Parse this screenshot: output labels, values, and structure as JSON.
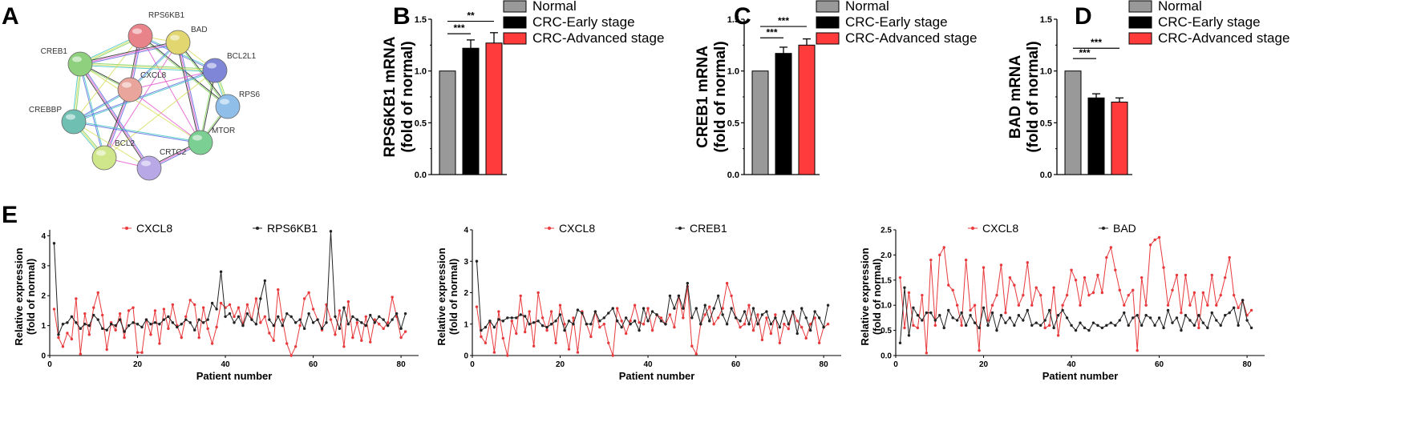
{
  "panels": {
    "a": "A",
    "b": "B",
    "c": "C",
    "d": "D",
    "e": "E"
  },
  "network": {
    "nodes": [
      {
        "label": "RPS6KB1",
        "color": "#e8838a"
      },
      {
        "label": "BAD",
        "color": "#e1d66f"
      },
      {
        "label": "CREB1",
        "color": "#8fd07f"
      },
      {
        "label": "BCL2L1",
        "color": "#7f86d8"
      },
      {
        "label": "CXCL8",
        "color": "#e9a59c"
      },
      {
        "label": "RPS6",
        "color": "#8fbfe8"
      },
      {
        "label": "CREBBP",
        "color": "#6fc0b3"
      },
      {
        "label": "MTOR",
        "color": "#7ccf93"
      },
      {
        "label": "BCL2",
        "color": "#cfe68a"
      },
      {
        "label": "CRTC2",
        "color": "#b9a8e6"
      }
    ]
  },
  "colors": {
    "normal": "#999999",
    "early": "#000000",
    "advanced": "#ff3b3b",
    "cxcl8_line": "#e8393c",
    "gene_line": "#222222"
  },
  "chart_data": [
    {
      "type": "bar",
      "panel": "B",
      "ylabel_line1": "RPS6KB1 mRNA",
      "ylabel_line2": "(fold of normal)",
      "categories": [
        "Normal",
        "CRC-Early stage",
        "CRC-Advanced stage"
      ],
      "values": [
        1.0,
        1.22,
        1.27
      ],
      "errors": [
        0,
        0.08,
        0.1
      ],
      "yticks": [
        "0.0",
        "0.5",
        "1.0",
        "1.5"
      ],
      "ylim": [
        0,
        1.5
      ],
      "significance": [
        {
          "from": 0,
          "to": 1,
          "label": "***",
          "level": 1.36
        },
        {
          "from": 0,
          "to": 2,
          "label": "**",
          "level": 1.48
        }
      ]
    },
    {
      "type": "bar",
      "panel": "C",
      "ylabel_line1": "CREB1 mRNA",
      "ylabel_line2": "(fold of normal)",
      "categories": [
        "Normal",
        "CRC-Early stage",
        "CRC-Advanced stage"
      ],
      "values": [
        1.0,
        1.17,
        1.25
      ],
      "errors": [
        0,
        0.06,
        0.06
      ],
      "yticks": [
        "0.0",
        "0.5",
        "1.0",
        "1.5"
      ],
      "ylim": [
        0,
        1.5
      ],
      "significance": [
        {
          "from": 0,
          "to": 1,
          "label": "***",
          "level": 1.32
        },
        {
          "from": 0,
          "to": 2,
          "label": "***",
          "level": 1.43
        }
      ]
    },
    {
      "type": "bar",
      "panel": "D",
      "ylabel_line1": "BAD mRNA",
      "ylabel_line2": "(fold of normal)",
      "categories": [
        "Normal",
        "CRC-Early stage",
        "CRC-Advanced stage"
      ],
      "values": [
        1.0,
        0.74,
        0.7
      ],
      "errors": [
        0,
        0.04,
        0.04
      ],
      "yticks": [
        "0.0",
        "0.5",
        "1.0",
        "1.5"
      ],
      "ylim": [
        0,
        1.5
      ],
      "significance": [
        {
          "from": 0,
          "to": 1,
          "label": "***",
          "level": 1.12
        },
        {
          "from": 0,
          "to": 2,
          "label": "***",
          "level": 1.22
        }
      ]
    },
    {
      "type": "line",
      "panel": "E1",
      "xlabel": "Patient number",
      "ylabel_line1": "Relative expression",
      "ylabel_line2": "(fold of normal)",
      "xticks": [
        "0",
        "20",
        "40",
        "60",
        "80"
      ],
      "xlim": [
        0,
        84
      ],
      "yticks": [
        "0",
        "1",
        "2",
        "3",
        "4"
      ],
      "ylim": [
        0,
        4.2
      ],
      "series": [
        {
          "name": "CXCL8",
          "values": [
            1.55,
            0.6,
            0.3,
            0.75,
            0.55,
            1.9,
            0.05,
            1.4,
            0.7,
            1.6,
            2.1,
            1.35,
            0.2,
            1.1,
            0.85,
            1.4,
            0.6,
            1.5,
            1.6,
            0.1,
            0.1,
            1.2,
            0.7,
            1.5,
            0.4,
            1.55,
            0.9,
            1.7,
            1.0,
            0.6,
            1.3,
            1.85,
            1.7,
            0.6,
            1.6,
            0.9,
            0.4,
            0.95,
            1.75,
            1.6,
            1.7,
            1.3,
            1.6,
            1.05,
            1.7,
            1.2,
            1.9,
            1.1,
            1.3,
            0.75,
            0.5,
            2.2,
            1.2,
            0.4,
            0.0,
            0.3,
            1.0,
            1.9,
            2.1,
            1.55,
            1.2,
            0.85,
            1.7,
            1.2,
            0.7,
            1.5,
            0.3,
            1.8,
            0.6,
            1.1,
            0.5,
            1.3,
            0.45,
            1.2,
            1.05,
            0.9,
            1.1,
            1.95,
            1.3,
            0.6,
            0.8
          ]
        },
        {
          "name": "RPS6KB1",
          "values": [
            3.75,
            0.7,
            1.05,
            1.1,
            1.3,
            1.1,
            0.9,
            1.05,
            1.0,
            1.35,
            1.2,
            0.9,
            0.85,
            1.05,
            1.0,
            1.2,
            0.8,
            1.0,
            1.1,
            1.05,
            0.95,
            1.2,
            1.05,
            1.1,
            1.05,
            1.2,
            1.3,
            1.1,
            0.95,
            1.05,
            1.2,
            1.1,
            0.85,
            1.2,
            1.1,
            1.2,
            1.75,
            1.55,
            2.8,
            1.3,
            1.4,
            1.1,
            1.3,
            1.0,
            1.4,
            1.2,
            1.05,
            1.9,
            2.5,
            1.2,
            1.0,
            1.3,
            1.0,
            1.4,
            1.3,
            1.1,
            1.2,
            0.9,
            1.4,
            1.1,
            1.2,
            0.9,
            1.1,
            4.15,
            1.3,
            0.9,
            1.6,
            1.05,
            1.3,
            1.2,
            1.1,
            1.0,
            1.35,
            1.1,
            1.3,
            1.2,
            1.0,
            1.2,
            1.4,
            0.9,
            1.4
          ]
        }
      ]
    },
    {
      "type": "line",
      "panel": "E2",
      "xlabel": "Patient number",
      "ylabel_line1": "Relative expression",
      "ylabel_line2": "(fold of normal)",
      "xticks": [
        "0",
        "20",
        "40",
        "60",
        "80"
      ],
      "xlim": [
        0,
        84
      ],
      "yticks": [
        "0",
        "1",
        "2",
        "3",
        "4"
      ],
      "ylim": [
        0,
        4
      ],
      "series": [
        {
          "name": "CXCL8",
          "values": [
            1.55,
            0.6,
            0.4,
            1.05,
            0.1,
            1.4,
            0.55,
            0.0,
            1.1,
            0.7,
            1.9,
            0.75,
            1.4,
            0.3,
            2.0,
            1.2,
            0.8,
            1.4,
            0.4,
            1.6,
            1.0,
            0.2,
            1.2,
            0.1,
            1.4,
            1.0,
            0.6,
            1.4,
            0.9,
            1.0,
            0.4,
            0.0,
            1.5,
            1.1,
            0.7,
            1.1,
            1.6,
            1.05,
            1.0,
            1.5,
            0.8,
            1.3,
            1.2,
            1.0,
            1.3,
            0.9,
            1.9,
            1.2,
            2.2,
            0.3,
            0.05,
            1.0,
            1.3,
            1.55,
            1.0,
            1.2,
            1.5,
            2.3,
            1.9,
            1.2,
            0.9,
            1.0,
            1.6,
            0.8,
            1.3,
            0.5,
            1.2,
            0.7,
            1.3,
            0.4,
            1.0,
            0.85,
            1.4,
            1.1,
            0.9,
            0.55,
            1.0,
            1.2,
            0.4,
            0.9,
            1.0
          ]
        },
        {
          "name": "CREB1",
          "values": [
            3.0,
            0.8,
            0.9,
            1.1,
            0.9,
            1.15,
            1.1,
            1.2,
            1.2,
            1.2,
            1.3,
            1.25,
            1.0,
            1.05,
            1.1,
            0.95,
            0.9,
            1.0,
            1.1,
            1.3,
            0.8,
            1.1,
            1.0,
            1.45,
            1.35,
            1.0,
            1.0,
            1.4,
            1.1,
            1.2,
            1.35,
            1.5,
            1.1,
            0.9,
            1.2,
            1.0,
            1.1,
            0.8,
            1.5,
            1.1,
            1.4,
            1.3,
            1.1,
            1.0,
            1.9,
            1.5,
            1.9,
            1.5,
            2.3,
            1.2,
            1.5,
            1.0,
            1.6,
            1.1,
            1.5,
            1.9,
            1.3,
            1.0,
            1.5,
            1.2,
            1.1,
            1.4,
            1.0,
            1.5,
            1.0,
            1.3,
            1.4,
            1.0,
            1.2,
            0.9,
            1.4,
            1.0,
            1.4,
            0.7,
            1.5,
            1.2,
            0.8,
            1.4,
            1.2,
            0.9,
            1.6
          ]
        }
      ]
    },
    {
      "type": "line",
      "panel": "E3",
      "xlabel": "Patient number",
      "ylabel_line1": "Relative expression",
      "ylabel_line2": "(fold of normal)",
      "xticks": [
        "0",
        "20",
        "40",
        "60",
        "80"
      ],
      "xlim": [
        0,
        84
      ],
      "yticks": [
        "0.0",
        "0.5",
        "1.0",
        "1.5",
        "2.0",
        "2.5"
      ],
      "ylim": [
        0,
        2.5
      ],
      "series": [
        {
          "name": "CXCL8",
          "values": [
            1.55,
            0.55,
            1.25,
            0.6,
            0.55,
            1.2,
            0.05,
            1.9,
            0.6,
            2.0,
            2.15,
            1.4,
            1.3,
            1.0,
            0.6,
            1.9,
            0.9,
            1.0,
            0.1,
            1.75,
            0.7,
            1.0,
            1.2,
            1.8,
            0.85,
            1.55,
            1.4,
            1.0,
            1.2,
            1.85,
            1.0,
            1.35,
            1.2,
            0.55,
            0.6,
            1.35,
            0.4,
            1.0,
            1.2,
            1.7,
            1.5,
            1.0,
            1.55,
            1.2,
            1.25,
            1.6,
            1.25,
            1.95,
            2.15,
            1.7,
            1.3,
            1.0,
            1.2,
            1.3,
            0.1,
            1.55,
            1.0,
            2.2,
            2.3,
            2.35,
            1.75,
            1.0,
            1.3,
            1.6,
            0.85,
            1.6,
            1.0,
            1.25,
            0.55,
            1.25,
            1.0,
            1.6,
            1.0,
            1.2,
            1.55,
            1.95,
            1.2,
            0.95,
            1.1,
            0.8,
            0.9
          ]
        },
        {
          "name": "BAD",
          "values": [
            0.25,
            1.35,
            0.4,
            0.95,
            0.8,
            0.7,
            0.85,
            0.85,
            0.7,
            0.8,
            0.55,
            0.9,
            0.75,
            0.7,
            0.85,
            0.6,
            0.8,
            0.65,
            0.55,
            0.95,
            0.6,
            0.85,
            0.5,
            0.8,
            0.65,
            0.75,
            0.6,
            0.8,
            0.7,
            0.9,
            0.6,
            0.65,
            0.6,
            0.7,
            0.9,
            0.55,
            0.8,
            0.9,
            0.75,
            0.6,
            0.5,
            0.65,
            0.55,
            0.5,
            0.65,
            0.6,
            0.55,
            0.6,
            0.65,
            0.6,
            0.7,
            0.85,
            0.6,
            0.75,
            0.8,
            0.6,
            0.8,
            0.75,
            0.6,
            0.75,
            0.55,
            0.9,
            0.65,
            0.75,
            0.5,
            0.8,
            0.7,
            0.6,
            0.8,
            0.65,
            0.55,
            0.85,
            0.7,
            0.6,
            0.8,
            0.85,
            0.95,
            0.6,
            1.1,
            0.7,
            0.55
          ]
        }
      ]
    }
  ]
}
